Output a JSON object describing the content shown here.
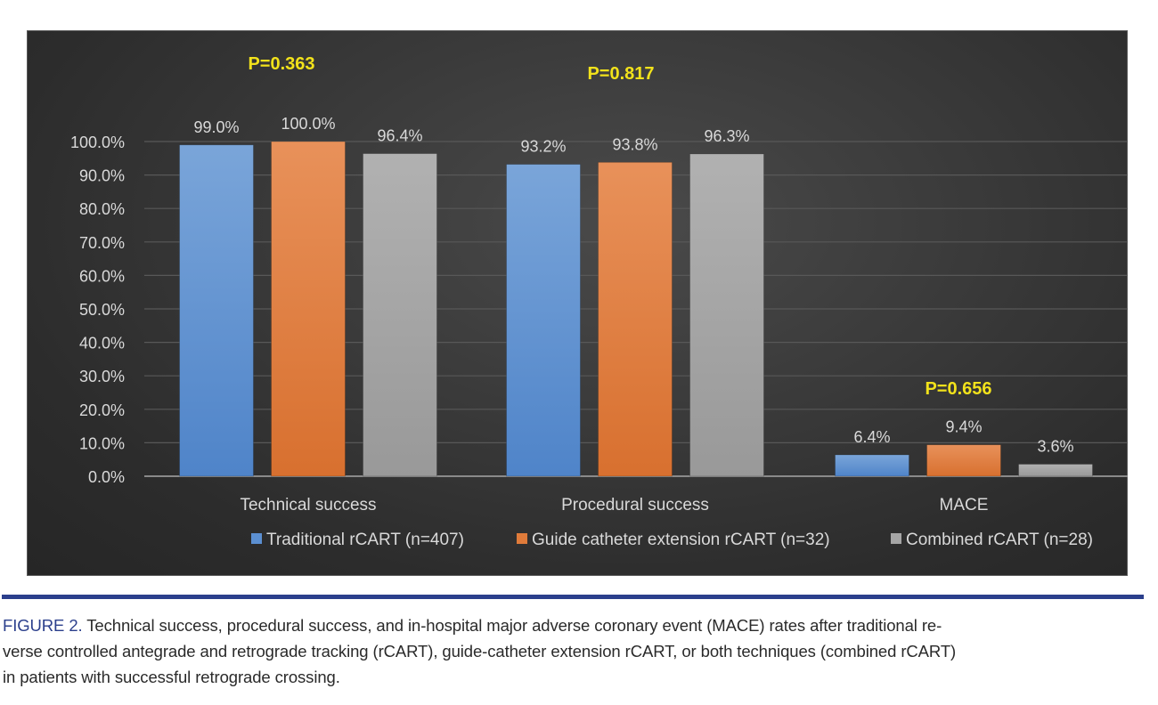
{
  "chart_data": {
    "type": "bar",
    "title": "",
    "xlabel": "",
    "ylabel": "",
    "ylim": [
      0,
      100
    ],
    "yticks": [
      "0.0%",
      "10.0%",
      "20.0%",
      "30.0%",
      "40.0%",
      "50.0%",
      "60.0%",
      "70.0%",
      "80.0%",
      "90.0%",
      "100.0%"
    ],
    "ytick_values": [
      0,
      10,
      20,
      30,
      40,
      50,
      60,
      70,
      80,
      90,
      100
    ],
    "grid": true,
    "legend_position": "bottom",
    "categories": [
      "Technical success",
      "Procedural success",
      "MACE"
    ],
    "series": [
      {
        "name": "Traditional rCART (n=407)",
        "color": "#5b8fd1",
        "values": [
          99.0,
          93.2,
          6.4
        ],
        "labels": [
          "99.0%",
          "93.2%",
          "6.4%"
        ]
      },
      {
        "name": "Guide catheter extension rCART (n=32)",
        "color": "#e07b3a",
        "values": [
          100.0,
          93.8,
          9.4
        ],
        "labels": [
          "100.0%",
          "93.8%",
          "9.4%"
        ]
      },
      {
        "name": "Combined rCART (n=28)",
        "color": "#a5a5a5",
        "values": [
          96.4,
          96.3,
          3.6
        ],
        "labels": [
          "96.4%",
          "96.3%",
          "3.6%"
        ]
      }
    ],
    "annotations": [
      {
        "text": "P=0.363",
        "category": "Technical success",
        "color": "#f2e21b"
      },
      {
        "text": "P=0.817",
        "category": "Procedural success",
        "color": "#f2e21b"
      },
      {
        "text": "P=0.656",
        "category": "MACE",
        "color": "#f2e21b"
      }
    ]
  },
  "caption": {
    "figure_label": "FIGURE 2.",
    "text": " Technical success, procedural success, and in-hospital major adverse coronary event (MACE) rates after traditional reverse controlled antegrade and retrograde tracking (rCART), guide-catheter extension rCART, or both techniques (combined rCART) in patients with successful retrograde crossing.",
    "line1": " Technical success, procedural success, and in-hospital major adverse coronary event (MACE) rates after traditional re-",
    "line2": "verse controlled antegrade and retrograde tracking (rCART), guide-catheter extension rCART, or both techniques (combined rCART)",
    "line3": "in patients with successful retrograde crossing."
  },
  "colors": {
    "divider": "#2b3f8c",
    "figure_label": "#2b3f8c"
  }
}
